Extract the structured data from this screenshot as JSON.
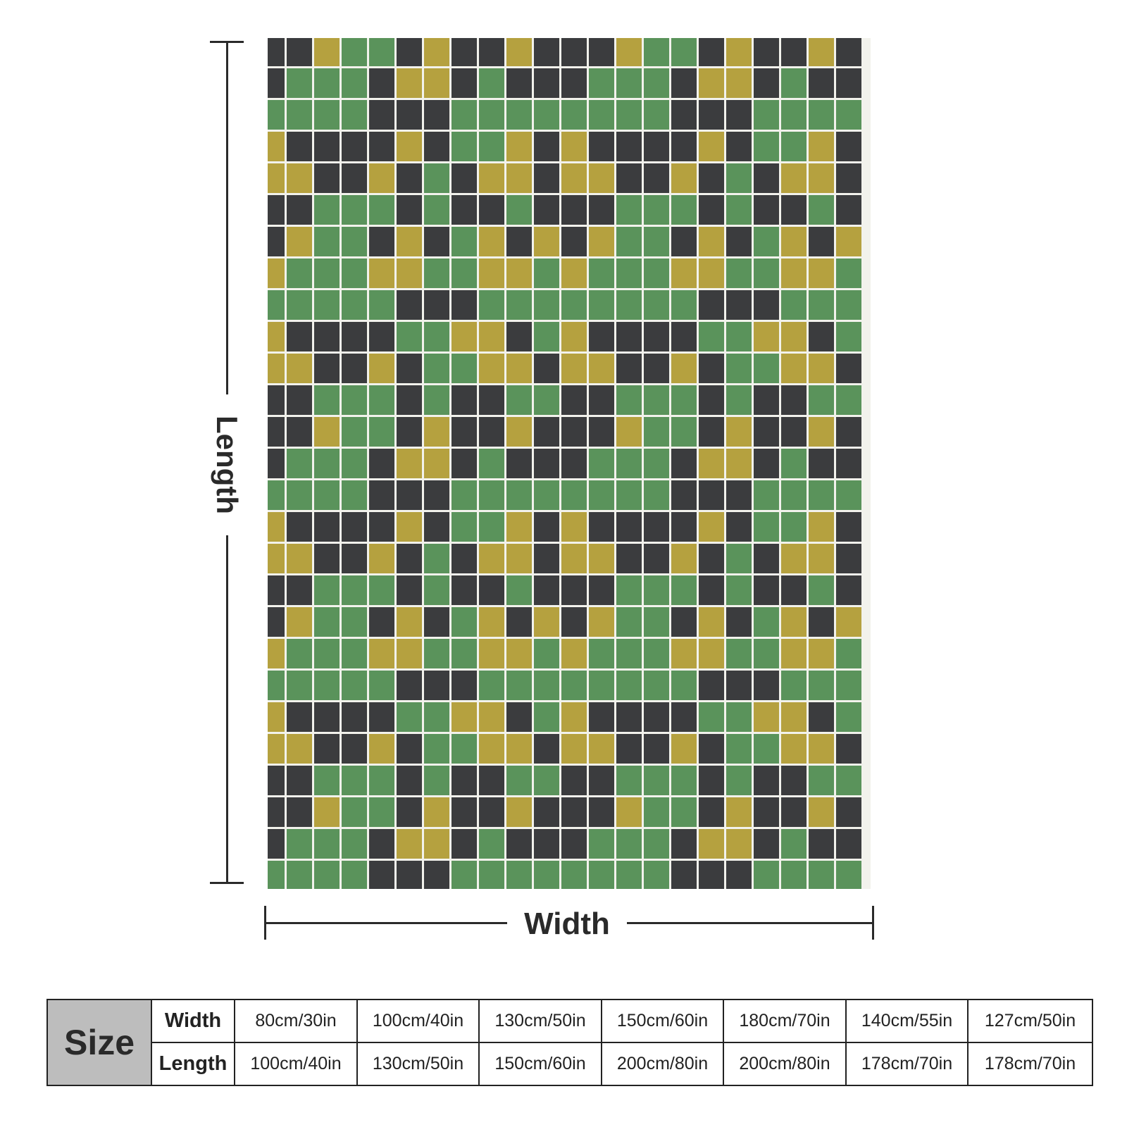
{
  "blanket": {
    "colors": {
      "green": "#5a935b",
      "gold": "#b5a13f",
      "charcoal": "#3b3c3e",
      "grout": "#f2f2ec"
    }
  },
  "dimensions": {
    "length_label": "Length",
    "width_label": "Width"
  },
  "size_table": {
    "header": "Size",
    "rows": [
      {
        "label": "Width",
        "values": [
          "80cm/30in",
          "100cm/40in",
          "130cm/50in",
          "150cm/60in",
          "180cm/70in",
          "140cm/55in",
          "127cm/50in"
        ]
      },
      {
        "label": "Length",
        "values": [
          "100cm/40in",
          "130cm/50in",
          "150cm/60in",
          "200cm/80in",
          "200cm/80in",
          "178cm/70in",
          "178cm/70in"
        ]
      }
    ]
  }
}
